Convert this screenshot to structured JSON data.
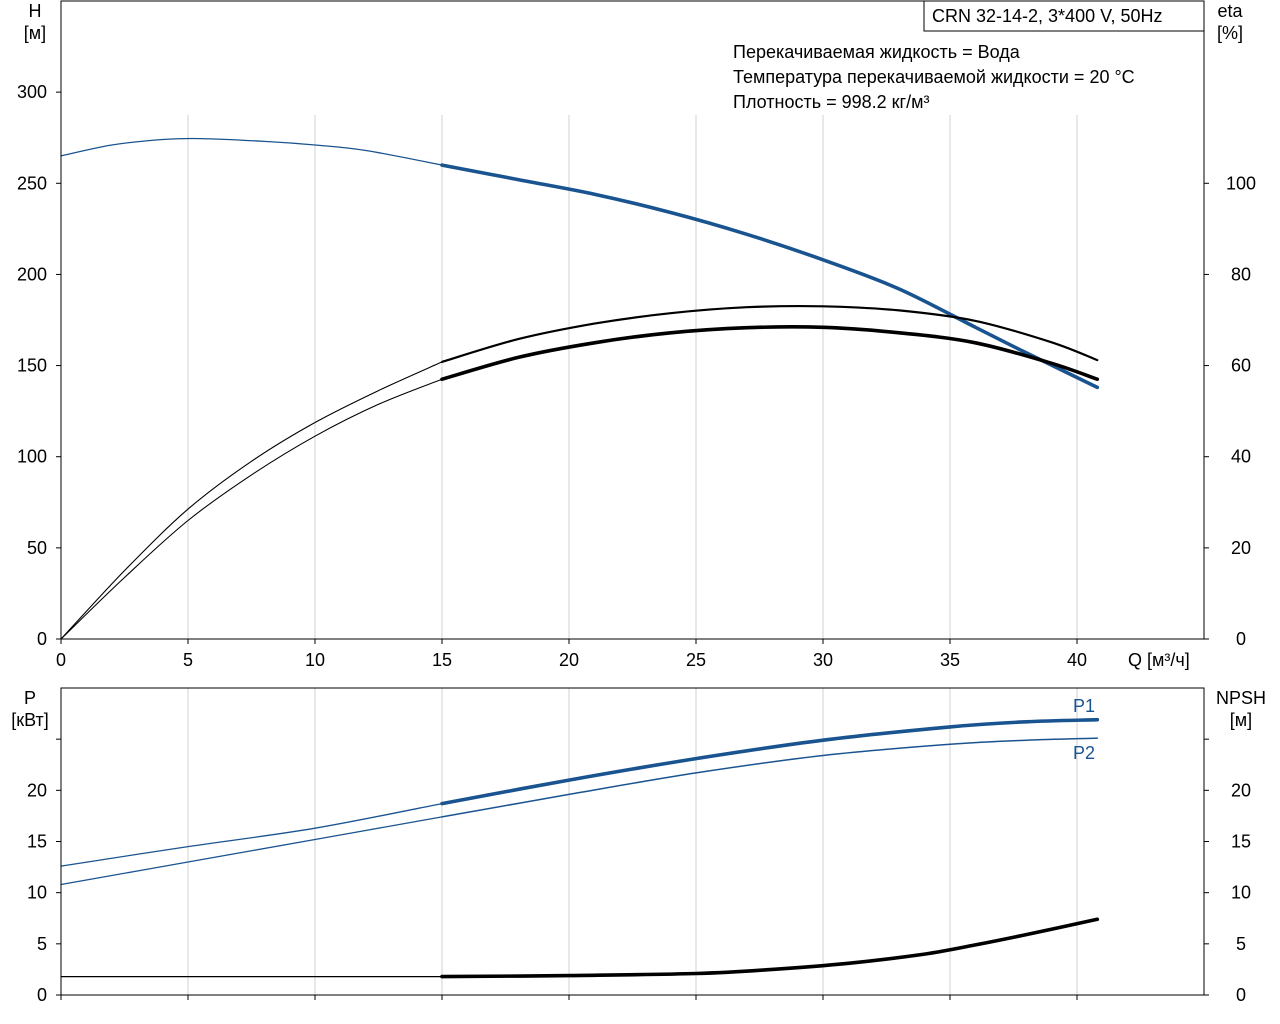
{
  "model_label": "CRN 32-14-2, 3*400 V, 50Hz",
  "info_lines": [
    "Перекачиваемая жидкость = Вода",
    "Температура перекачиваемой жидкости = 20 °C",
    "Плотность = 998.2 кг/м³"
  ],
  "colors": {
    "head": "#1a5490",
    "power": "#1a5490",
    "eff": "#000000",
    "npsh": "#000000",
    "grid": "#d0d0d0"
  },
  "chart_data": [
    {
      "type": "line",
      "xlabel": "Q [м³/ч]",
      "xlim": [
        0,
        45
      ],
      "xticks": [
        0,
        5,
        10,
        15,
        20,
        25,
        30,
        35,
        40
      ],
      "left_axis": {
        "label_top": "H",
        "label_unit": "[м]",
        "ylim": [
          0,
          350
        ],
        "ticks": [
          0,
          50,
          100,
          150,
          200,
          250,
          300
        ]
      },
      "right_axis": {
        "label_top": "eta",
        "label_unit": "[%]",
        "ylim": [
          0,
          140
        ],
        "ticks": [
          0,
          20,
          40,
          60,
          80,
          100
        ]
      },
      "grid": true,
      "series": [
        {
          "key": "head",
          "axis": "left",
          "x": [
            0,
            2,
            4,
            5.5,
            8,
            10,
            12,
            15,
            18,
            21,
            24,
            27,
            30,
            33,
            36,
            38,
            40.8
          ],
          "y": [
            265,
            271,
            274,
            274.5,
            273,
            271,
            268,
            260,
            252,
            244,
            234,
            222,
            208,
            192,
            171,
            157,
            138
          ],
          "op_start": 15
        },
        {
          "key": "eff_outer",
          "axis": "right",
          "x": [
            0,
            2.5,
            5,
            7.5,
            10,
            12.5,
            15,
            18,
            21,
            24,
            27,
            30,
            33,
            36,
            39,
            40.8
          ],
          "y": [
            0,
            15,
            28.5,
            39,
            47.5,
            54.5,
            60.8,
            65.8,
            69.2,
            71.5,
            72.8,
            73,
            72.1,
            69.8,
            65.1,
            61.2
          ],
          "op_start": 15
        },
        {
          "key": "eff_inner",
          "axis": "right",
          "x": [
            0,
            2.5,
            5,
            7.5,
            10,
            12.5,
            15,
            18,
            21,
            24,
            27,
            30,
            33,
            36,
            39,
            40.8
          ],
          "y": [
            0,
            13.5,
            26,
            36,
            44.5,
            51.5,
            57,
            61.8,
            65,
            67.2,
            68.3,
            68.4,
            67.2,
            65,
            60.5,
            57
          ],
          "op_start": 15
        }
      ]
    },
    {
      "type": "line",
      "xlim": [
        0,
        45
      ],
      "xticks": [
        0,
        5,
        10,
        15,
        20,
        25,
        30,
        35,
        40
      ],
      "left_axis": {
        "label_top": "P",
        "label_unit": "[кВт]",
        "ylim": [
          0,
          30
        ],
        "ticks": [
          0,
          5,
          10,
          15,
          20
        ]
      },
      "right_axis": {
        "label_top": "NPSH",
        "label_unit": "[м]",
        "ylim": [
          0,
          30
        ],
        "ticks": [
          0,
          5,
          10,
          15,
          20
        ]
      },
      "grid": true,
      "series": [
        {
          "key": "p1",
          "name": "P1",
          "axis": "left",
          "x": [
            0,
            5,
            10,
            15,
            20,
            25,
            30,
            35,
            38,
            40.8
          ],
          "y": [
            12.6,
            14.5,
            16.3,
            18.7,
            21,
            23.1,
            24.9,
            26.2,
            26.7,
            26.9
          ],
          "op_start": 15
        },
        {
          "key": "p2",
          "name": "P2",
          "axis": "left",
          "x": [
            0,
            5,
            10,
            15,
            20,
            25,
            30,
            35,
            38,
            40.8
          ],
          "y": [
            10.8,
            13,
            15.2,
            17.4,
            19.6,
            21.7,
            23.4,
            24.5,
            24.9,
            25.1
          ],
          "op_start": 15
        },
        {
          "key": "npsh",
          "axis": "right",
          "x": [
            0,
            10,
            15,
            20,
            25,
            28,
            31,
            34,
            36,
            38,
            40.8
          ],
          "y": [
            1.8,
            1.8,
            1.8,
            1.9,
            2.1,
            2.5,
            3.1,
            4,
            4.9,
            5.9,
            7.4
          ],
          "op_start": 15
        }
      ]
    }
  ]
}
